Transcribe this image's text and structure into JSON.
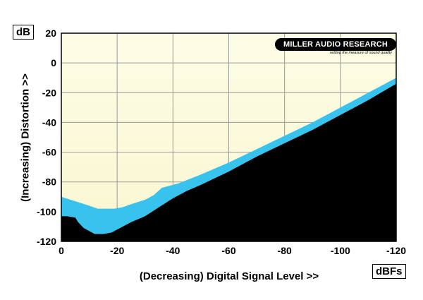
{
  "chart_data": {
    "type": "area",
    "y_unit": "dB",
    "x_unit": "dBFs",
    "ylabel": "(Increasing) Distortion >>",
    "xlabel": "(Decreasing) Digital Signal Level >>",
    "xlim": [
      0,
      -120
    ],
    "ylim": [
      -120,
      20
    ],
    "x_ticks": [
      "0",
      "-20",
      "-40",
      "-60",
      "-80",
      "-100",
      "-120"
    ],
    "y_ticks": [
      "20",
      "0",
      "-20",
      "-40",
      "-60",
      "-80",
      "-100",
      "-120"
    ],
    "grid": true,
    "series": [
      {
        "values_role": "upper",
        "x": [
          0,
          -5,
          -10,
          -13,
          -16,
          -19,
          -22,
          -25,
          -30,
          -33,
          -36,
          -40,
          -42,
          -50,
          -60,
          -70,
          -80,
          -90,
          -100,
          -110,
          -120
        ],
        "y": [
          -90,
          -93,
          -96,
          -98,
          -98,
          -98,
          -97,
          -95,
          -92,
          -89,
          -84,
          -82,
          -81,
          -75,
          -67,
          -58,
          -49,
          -40,
          -30,
          -20,
          -10
        ]
      },
      {
        "values_role": "lower",
        "x": [
          0,
          -2,
          -5,
          -6,
          -8,
          -10,
          -12,
          -15,
          -18,
          -20,
          -25,
          -30,
          -35,
          -40,
          -45,
          -50,
          -60,
          -70,
          -80,
          -90,
          -100,
          -110,
          -120
        ],
        "y": [
          -103,
          -103,
          -104,
          -107,
          -111,
          -113,
          -115,
          -115,
          -114,
          -112,
          -107,
          -103,
          -97,
          -91,
          -86,
          -82,
          -73,
          -63,
          -54,
          -45,
          -35,
          -25,
          -14
        ]
      }
    ],
    "colors": {
      "band": "#38c3ef",
      "below": "#000000",
      "background_top": "#fdfde9",
      "background_bottom": "#fbf6d2",
      "grid": "#999999"
    }
  },
  "logo": {
    "text": "MILLER AUDIO RESEARCH",
    "tagline": "setting the measure of sound quality"
  }
}
